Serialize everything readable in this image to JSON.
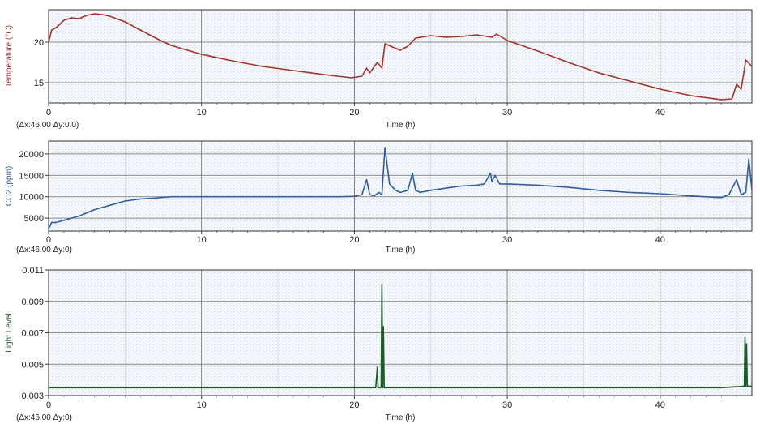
{
  "chart_data": [
    {
      "type": "line",
      "xlabel": "Time (h)",
      "ylabel": "Temperature (°C)",
      "xlim": [
        0,
        46
      ],
      "ylim": [
        12.5,
        24
      ],
      "xticks": [
        0,
        10,
        20,
        30,
        40
      ],
      "yticks": [
        15,
        20
      ],
      "grid": true,
      "delta_label": "(Δx:46.00 Δy:0.0)",
      "color": "#a3332a",
      "series": [
        {
          "x": [
            0,
            0.2,
            0.5,
            1,
            1.5,
            2,
            2.5,
            3,
            3.5,
            4,
            5,
            6,
            7,
            8,
            10,
            12,
            14,
            16,
            18,
            19.8,
            20.5,
            20.8,
            21,
            21.5,
            21.8,
            22,
            23,
            23.5,
            24,
            25,
            26,
            27,
            28,
            29,
            29.3,
            30,
            32,
            34,
            36,
            38,
            40,
            42,
            44,
            44.7,
            45,
            45.3,
            45.6,
            46
          ],
          "y": [
            20,
            21.5,
            21.8,
            22.7,
            23,
            22.9,
            23.3,
            23.5,
            23.4,
            23.2,
            22.5,
            21.5,
            20.5,
            19.6,
            18.5,
            17.7,
            17.0,
            16.5,
            16.0,
            15.6,
            15.8,
            16.8,
            16.2,
            17.5,
            16.8,
            19.8,
            19.0,
            19.5,
            20.5,
            20.8,
            20.6,
            20.7,
            20.9,
            20.6,
            21.0,
            20.2,
            18.9,
            17.5,
            16.2,
            15.2,
            14.2,
            13.4,
            12.9,
            13.0,
            14.8,
            14.2,
            17.8,
            17.0
          ]
        }
      ]
    },
    {
      "type": "line",
      "xlabel": "Time (h)",
      "ylabel": "CO2 (ppm)",
      "xlim": [
        0,
        46
      ],
      "ylim": [
        2000,
        23000
      ],
      "xticks": [
        0,
        10,
        20,
        30,
        40
      ],
      "yticks": [
        5000,
        10000,
        15000,
        20000
      ],
      "grid": true,
      "delta_label": "(Δx:46.00 Δy:0)",
      "color": "#2f5f9e",
      "series": [
        {
          "x": [
            0,
            0.2,
            0.5,
            1,
            2,
            3,
            4,
            5,
            6,
            7,
            8,
            10,
            15,
            19,
            20,
            20.5,
            20.8,
            21,
            21.3,
            21.6,
            21.8,
            22,
            22.3,
            22.7,
            23,
            23.5,
            23.8,
            24,
            24.3,
            25,
            26,
            27,
            28,
            28.5,
            28.9,
            29,
            29.2,
            29.5,
            30,
            32,
            34,
            36,
            38,
            40,
            42,
            44,
            44.5,
            45,
            45.3,
            45.6,
            45.8,
            46
          ],
          "y": [
            2500,
            4000,
            4000,
            4500,
            5500,
            7000,
            8000,
            9000,
            9500,
            9700,
            10000,
            10000,
            10000,
            10000,
            10100,
            10500,
            14000,
            10500,
            10200,
            11000,
            10500,
            21500,
            13000,
            11500,
            11000,
            11500,
            15500,
            11500,
            11000,
            11500,
            12000,
            12500,
            12700,
            13000,
            15500,
            13500,
            15000,
            13000,
            13000,
            12700,
            12200,
            11500,
            11000,
            10700,
            10200,
            9800,
            10500,
            14000,
            10500,
            11000,
            18800,
            11500
          ]
        }
      ]
    },
    {
      "type": "line",
      "xlabel": "Time (h)",
      "ylabel": "Light Level",
      "xlim": [
        0,
        46
      ],
      "ylim": [
        0.003,
        0.011
      ],
      "xticks": [
        0,
        10,
        20,
        30,
        40
      ],
      "yticks": [
        0.003,
        0.005,
        0.007,
        0.009,
        0.011
      ],
      "grid": true,
      "delta_label": "(Δx:46.00 Δy:0)",
      "color": "#1f5a2a",
      "series": [
        {
          "x": [
            0,
            21.4,
            21.5,
            21.55,
            21.6,
            21.75,
            21.8,
            21.85,
            21.9,
            21.95,
            22.0,
            22.1,
            44,
            45.5,
            45.55,
            45.6,
            45.65,
            45.7,
            46
          ],
          "y": [
            0.0035,
            0.0035,
            0.0048,
            0.0035,
            0.0035,
            0.0035,
            0.0101,
            0.0035,
            0.0074,
            0.0035,
            0.0035,
            0.0035,
            0.0035,
            0.0036,
            0.0067,
            0.0036,
            0.0063,
            0.0036,
            0.0036
          ]
        }
      ]
    }
  ]
}
